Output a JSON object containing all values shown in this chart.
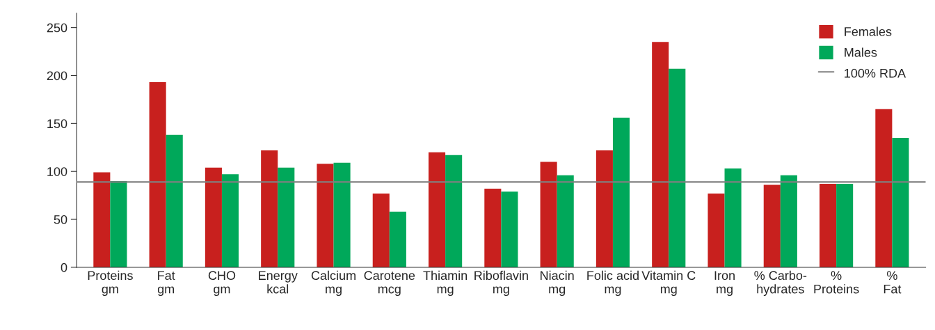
{
  "chart_data": {
    "type": "bar",
    "categories": [
      "Proteins\ngm",
      "Fat\ngm",
      "CHO\ngm",
      "Energy\nkcal",
      "Calcium\nmg",
      "Carotene\nmcg",
      "Thiamin\nmg",
      "Riboflavin\nmg",
      "Niacin\nmg",
      "Folic acid\nmg",
      "Vitamin C\nmg",
      "Iron\nmg",
      "% Carbo-\nhydrates",
      "%\nProteins",
      "%\nFat"
    ],
    "series": [
      {
        "name": "Females",
        "color": "#c8201e",
        "values": [
          99,
          193,
          104,
          122,
          108,
          77,
          120,
          82,
          110,
          122,
          235,
          77,
          86,
          87,
          165
        ]
      },
      {
        "name": "Males",
        "color": "#00a85a",
        "values": [
          90,
          138,
          97,
          104,
          109,
          58,
          117,
          79,
          96,
          156,
          207,
          103,
          96,
          87,
          135
        ]
      }
    ],
    "ylim": [
      0,
      265
    ],
    "yticks": [
      0,
      50,
      100,
      150,
      200,
      250
    ],
    "ref_lines": [
      {
        "axis": "y",
        "value": 89,
        "label": "100% RDA",
        "color": "#808080"
      }
    ],
    "grid": false,
    "legend": "top right"
  }
}
